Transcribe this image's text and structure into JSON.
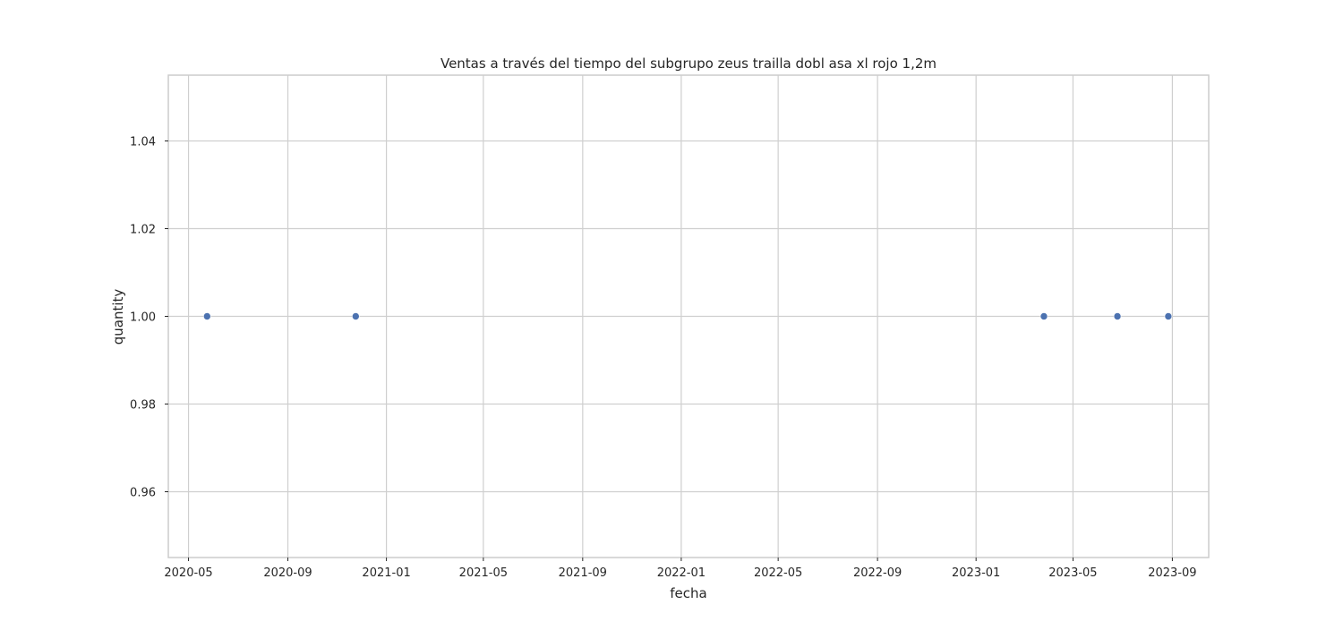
{
  "chart_data": {
    "type": "scatter",
    "title": "Ventas a través del tiempo del subgrupo zeus trailla dobl asa  xl  rojo 1,2m",
    "xlabel": "fecha",
    "ylabel": "quantity",
    "x_axis_type": "date",
    "xlim": [
      "2020-04-06",
      "2023-10-16"
    ],
    "ylim": [
      0.945,
      1.055
    ],
    "x_ticks": [
      "2020-05",
      "2020-09",
      "2021-01",
      "2021-05",
      "2021-09",
      "2022-01",
      "2022-05",
      "2022-09",
      "2023-01",
      "2023-05",
      "2023-09"
    ],
    "x_tick_dates": [
      "2020-05-01",
      "2020-09-01",
      "2021-01-01",
      "2021-05-01",
      "2021-09-01",
      "2022-01-01",
      "2022-05-01",
      "2022-09-01",
      "2023-01-01",
      "2023-05-01",
      "2023-09-01"
    ],
    "y_ticks": [
      0.96,
      0.98,
      1.0,
      1.02,
      1.04
    ],
    "y_tick_labels": [
      "0.96",
      "0.98",
      "1.00",
      "1.02",
      "1.04"
    ],
    "grid": true,
    "series": [
      {
        "color": "#4c72b0",
        "points": [
          {
            "x": "2020-05-24",
            "y": 1.0
          },
          {
            "x": "2020-11-24",
            "y": 1.0
          },
          {
            "x": "2023-03-26",
            "y": 1.0
          },
          {
            "x": "2023-06-25",
            "y": 1.0
          },
          {
            "x": "2023-08-27",
            "y": 1.0
          }
        ]
      }
    ]
  }
}
